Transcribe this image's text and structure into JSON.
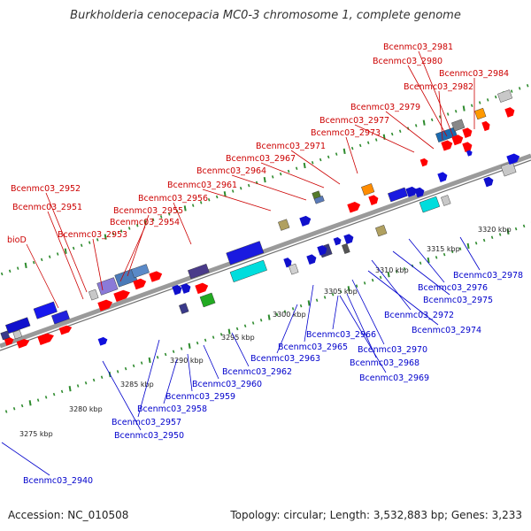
{
  "title": "Burkholderia cenocepacia MC0-3 chromosome 1, complete genome",
  "footer": {
    "accession": "Accession: NC_010508",
    "summary": "Topology: circular; Length: 3,532,883 bp; Genes: 3,233"
  },
  "colors": {
    "backbone": "#9a9a9a",
    "tick_mark": "#2e8b2e",
    "label_top": "#cc0000",
    "label_bottom": "#0000cc"
  },
  "ticks": [
    "3275 kbp",
    "3280 kbp",
    "3285 kbp",
    "3290 kbp",
    "3295 kbp",
    "3300 kbp",
    "3305 kbp",
    "3310 kbp",
    "3315 kbp",
    "3320 kbp"
  ],
  "labels_top": [
    "Bcenmc03_2981",
    "Bcenmc03_2980",
    "Bcenmc03_2984",
    "Bcenmc03_2982",
    "Bcenmc03_2979",
    "Bcenmc03_2977",
    "Bcenmc03_2973",
    "Bcenmc03_2971",
    "Bcenmc03_2967",
    "Bcenmc03_2964",
    "Bcenmc03_2961",
    "Bcenmc03_2956",
    "Bcenmc03_2955",
    "Bcenmc03_2954",
    "Bcenmc03_2953",
    "Bcenmc03_2952",
    "Bcenmc03_2951",
    "bioD"
  ],
  "labels_bottom": [
    "Bcenmc03_2978",
    "Bcenmc03_2976",
    "Bcenmc03_2975",
    "Bcenmc03_2972",
    "Bcenmc03_2974",
    "Bcenmc03_2966",
    "Bcenmc03_2965",
    "Bcenmc03_2963",
    "Bcenmc03_2970",
    "Bcenmc03_2968",
    "Bcenmc03_2969",
    "Bcenmc03_2962",
    "Bcenmc03_2960",
    "Bcenmc03_2959",
    "Bcenmc03_2958",
    "Bcenmc03_2957",
    "Bcenmc03_2950",
    "Bcenmc03_2940"
  ]
}
